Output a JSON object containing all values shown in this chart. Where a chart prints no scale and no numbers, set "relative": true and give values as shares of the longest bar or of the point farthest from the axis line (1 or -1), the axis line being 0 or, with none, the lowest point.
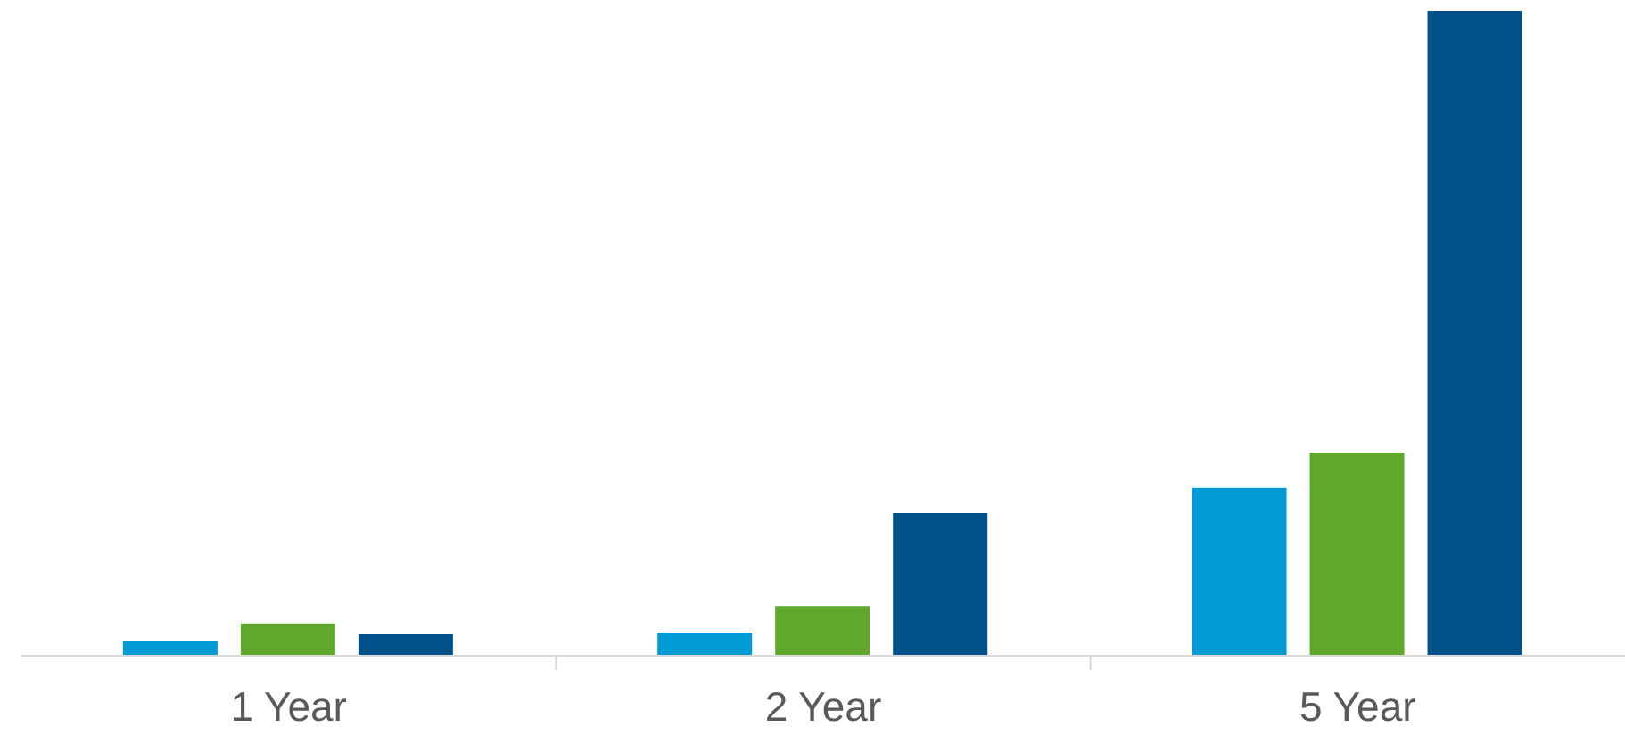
{
  "chart_data": {
    "type": "bar",
    "relative": true,
    "categories": [
      "1 Year",
      "2 Year",
      "5 Year"
    ],
    "series": [
      {
        "color": "#009ad6",
        "values": [
          0.022,
          0.036,
          0.26
        ]
      },
      {
        "color": "#5ea82c",
        "values": [
          0.05,
          0.077,
          0.315
        ]
      },
      {
        "color": "#00508a",
        "values": [
          0.033,
          0.221,
          1
        ]
      }
    ],
    "grid": false
  }
}
